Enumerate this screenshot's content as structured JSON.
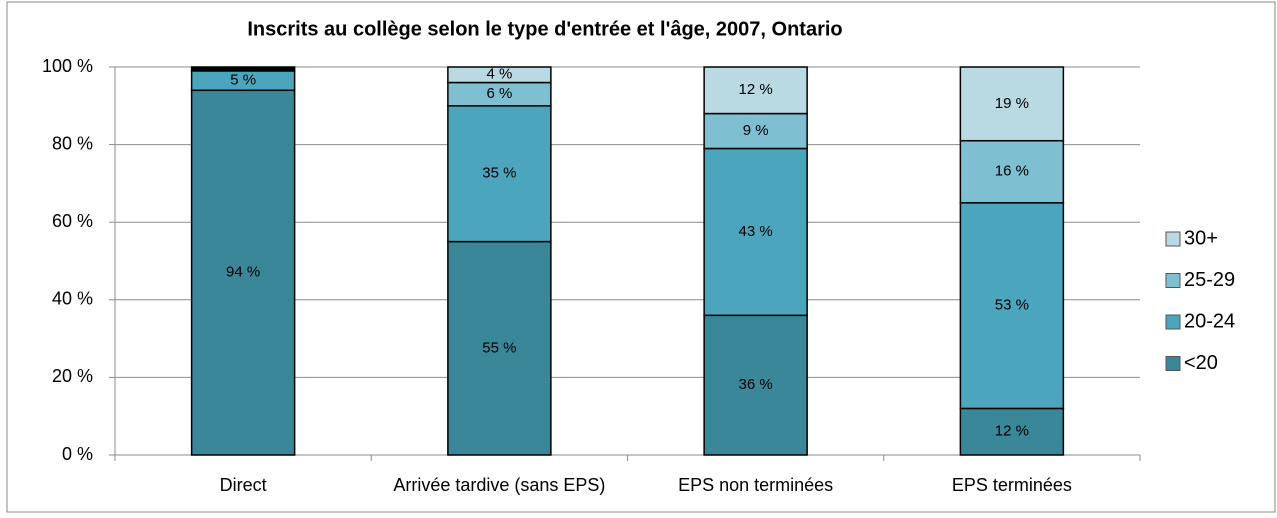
{
  "chart_data": {
    "type": "stacked_bar",
    "title": "Inscrits au collège selon le type d'entrée et l'âge, 2007, Ontario",
    "categories": [
      "Direct",
      "Arrivée tardive (sans EPS)",
      "EPS non terminées",
      "EPS terminées"
    ],
    "series": [
      {
        "name": "<20",
        "color": "#3a8799",
        "values": [
          94,
          55,
          36,
          12
        ],
        "value_labels": [
          "94 %",
          "55 %",
          "36 %",
          "12 %"
        ]
      },
      {
        "name": "20-24",
        "color": "#4aa5bd",
        "values": [
          5,
          35,
          43,
          53
        ],
        "value_labels": [
          "5 %",
          "35 %",
          "43 %",
          "53 %"
        ]
      },
      {
        "name": "25-29",
        "color": "#7fbfd2",
        "values": [
          0,
          6,
          9,
          16
        ],
        "value_labels": [
          null,
          "6 %",
          "9 %",
          "16 %"
        ]
      },
      {
        "name": "30+",
        "color": "#b9d9e3",
        "values": [
          1,
          4,
          12,
          19
        ],
        "value_labels": [
          null,
          "4 %",
          "12 %",
          "19 %"
        ]
      }
    ],
    "ylim": [
      0,
      100
    ],
    "yticks": [
      {
        "value": 0,
        "label": "0 %"
      },
      {
        "value": 20,
        "label": "20 %"
      },
      {
        "value": 40,
        "label": "40 %"
      },
      {
        "value": 60,
        "label": "60 %"
      },
      {
        "value": 80,
        "label": "80 %"
      },
      {
        "value": 100,
        "label": "100 %"
      }
    ],
    "grid": true,
    "legend": "right"
  }
}
